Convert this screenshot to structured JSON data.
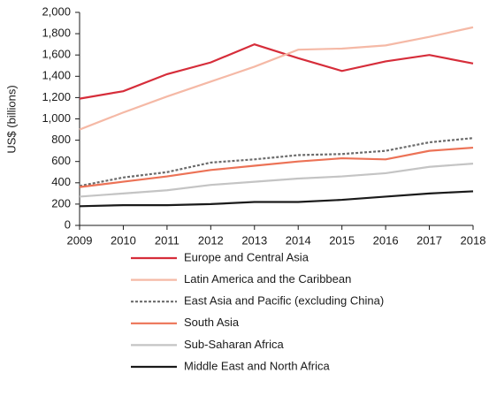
{
  "chart_data": {
    "type": "line",
    "y_label": "US$ (billions)",
    "x": [
      2009,
      2010,
      2011,
      2012,
      2013,
      2014,
      2015,
      2016,
      2017,
      2018
    ],
    "xlim": [
      2009,
      2018
    ],
    "xticks": [
      2009,
      2010,
      2011,
      2012,
      2013,
      2014,
      2015,
      2016,
      2017,
      2018
    ],
    "ylim": [
      0,
      2000
    ],
    "yticks": [
      0,
      200,
      400,
      600,
      800,
      {
        "value": 1000,
        "label": "1,000"
      },
      {
        "value": 1200,
        "label": "1,200"
      },
      {
        "value": 1400,
        "label": "1,400"
      },
      {
        "value": 1600,
        "label": "1,600"
      },
      {
        "value": 1800,
        "label": "1,800"
      },
      {
        "value": 2000,
        "label": "2,000"
      }
    ],
    "grid": false,
    "legend": "bottom",
    "series": [
      {
        "name": "Europe and Central Asia",
        "color": "#d62d3a",
        "linestyle": "solid",
        "values": [
          1190,
          1260,
          1420,
          1530,
          1700,
          1570,
          1450,
          1540,
          1600,
          1520
        ]
      },
      {
        "name": "Latin America and the Caribbean",
        "color": "#f5b9a6",
        "linestyle": "solid",
        "values": [
          900,
          1060,
          1210,
          1350,
          1490,
          1650,
          1660,
          1690,
          1770,
          1860
        ]
      },
      {
        "name": "East Asia and Pacific (excluding China)",
        "color": "#6b6b6b",
        "linestyle": "dotted",
        "values": [
          370,
          450,
          500,
          590,
          620,
          660,
          670,
          700,
          780,
          820
        ]
      },
      {
        "name": "South Asia",
        "color": "#ec7256",
        "linestyle": "solid",
        "values": [
          360,
          410,
          460,
          520,
          560,
          600,
          630,
          620,
          700,
          730
        ]
      },
      {
        "name": "Sub-Saharan Africa",
        "color": "#c4c4c4",
        "linestyle": "solid",
        "values": [
          270,
          300,
          330,
          380,
          410,
          440,
          460,
          490,
          550,
          580
        ]
      },
      {
        "name": "Middle East and North Africa",
        "color": "#1a1a1a",
        "linestyle": "solid",
        "values": [
          180,
          190,
          190,
          200,
          220,
          220,
          240,
          270,
          300,
          320
        ]
      }
    ]
  }
}
